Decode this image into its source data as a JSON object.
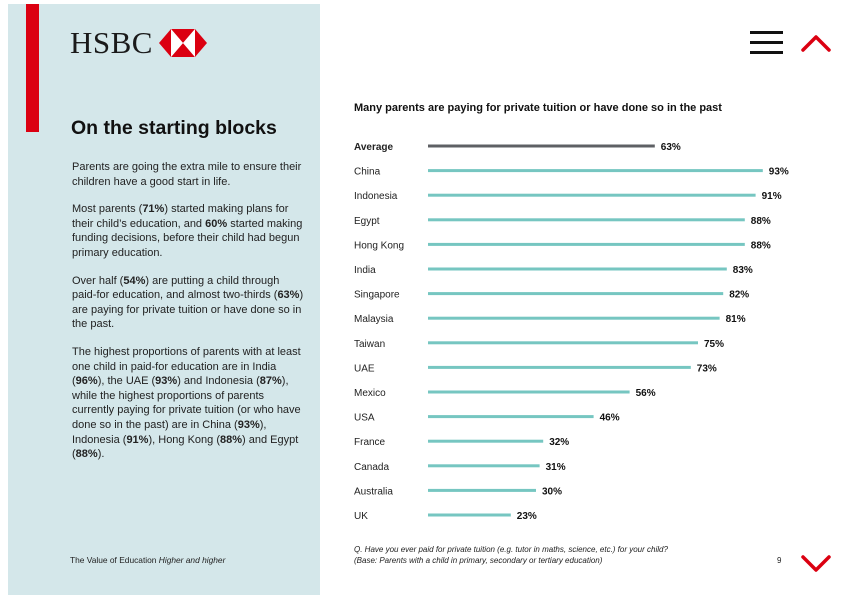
{
  "brand": {
    "name": "HSBC",
    "colors": {
      "red": "#db0011",
      "panel": "#d4e7ea",
      "bar": "#76c6c1",
      "average_bar": "#5e6064"
    }
  },
  "nav": {
    "menu_icon": "hamburger-menu-icon",
    "up_icon": "chevron-up-icon",
    "down_icon": "chevron-down-icon"
  },
  "sidebar": {
    "title": "On the starting blocks",
    "paragraphs": [
      [
        {
          "t": "Parents are going the extra mile to ensure their children have a good start in life.",
          "b": false
        }
      ],
      [
        {
          "t": "Most parents (",
          "b": false
        },
        {
          "t": "71%",
          "b": true
        },
        {
          "t": ") started making plans for their child’s education, and ",
          "b": false
        },
        {
          "t": "60%",
          "b": true
        },
        {
          "t": " started making funding decisions, before their child had begun primary education.",
          "b": false
        }
      ],
      [
        {
          "t": "Over half (",
          "b": false
        },
        {
          "t": "54%",
          "b": true
        },
        {
          "t": ") are putting a child through paid-for education, and almost two-thirds (",
          "b": false
        },
        {
          "t": "63%",
          "b": true
        },
        {
          "t": ") are paying for private tuition or have done so in the past.",
          "b": false
        }
      ],
      [
        {
          "t": "The highest proportions of parents with at least one child in paid-for education are in India (",
          "b": false
        },
        {
          "t": "96%",
          "b": true
        },
        {
          "t": "), the UAE (",
          "b": false
        },
        {
          "t": "93%",
          "b": true
        },
        {
          "t": ") and Indonesia (",
          "b": false
        },
        {
          "t": "87%",
          "b": true
        },
        {
          "t": "), while the highest proportions of parents currently paying for private tuition (or who have done so in the past) are in China (",
          "b": false
        },
        {
          "t": "93%",
          "b": true
        },
        {
          "t": "), Indonesia (",
          "b": false
        },
        {
          "t": "91%",
          "b": true
        },
        {
          "t": "), Hong Kong (",
          "b": false
        },
        {
          "t": "88%",
          "b": true
        },
        {
          "t": ") and Egypt (",
          "b": false
        },
        {
          "t": "88%",
          "b": true
        },
        {
          "t": ").",
          "b": false
        }
      ]
    ],
    "footer": {
      "prefix": "The Value of Education ",
      "italic": "Higher and higher"
    }
  },
  "chart_data": {
    "type": "bar",
    "orientation": "horizontal",
    "title": "Many parents are paying for private tuition or have done so in the past",
    "categories": [
      "Average",
      "China",
      "Indonesia",
      "Egypt",
      "Hong Kong",
      "India",
      "Singapore",
      "Malaysia",
      "Taiwan",
      "UAE",
      "Mexico",
      "USA",
      "France",
      "Canada",
      "Australia",
      "UK"
    ],
    "values": [
      63,
      93,
      91,
      88,
      88,
      83,
      82,
      81,
      75,
      73,
      56,
      46,
      32,
      31,
      30,
      23
    ],
    "value_labels": [
      "63%",
      "93%",
      "91%",
      "88%",
      "88%",
      "83%",
      "82%",
      "81%",
      "75%",
      "73%",
      "56%",
      "46%",
      "32%",
      "31%",
      "30%",
      "23%"
    ],
    "highlight_category": "Average",
    "xlim": [
      0,
      100
    ],
    "unit": "%",
    "grid": false,
    "legend": "none"
  },
  "footnote": {
    "line1": "Q. Have you ever paid for private tuition (e.g. tutor in maths, science, etc.) for your child?",
    "line2": "(Base: Parents with a child in primary, secondary or tertiary education)"
  },
  "page_number": "9"
}
